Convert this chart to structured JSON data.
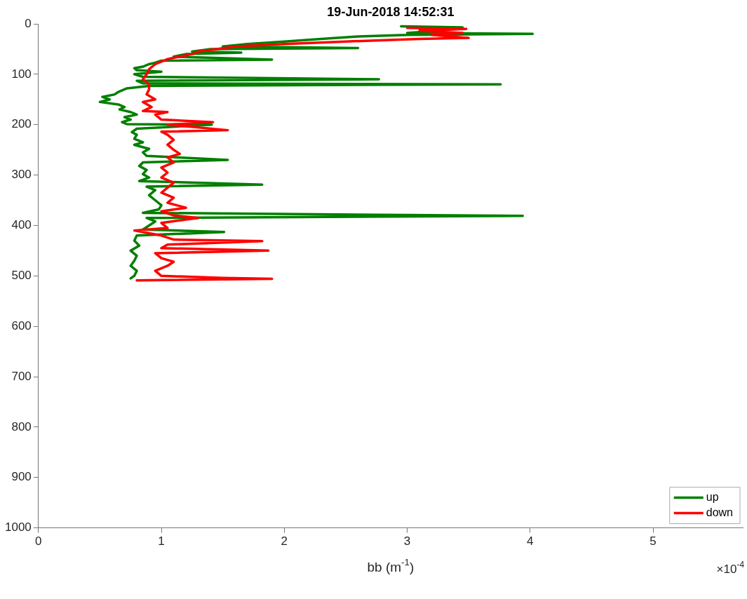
{
  "chart_data": {
    "type": "line",
    "title": "19-Jun-2018 14:52:31",
    "xlabel": "bb (m$^{-1}$)",
    "annotations": [
      "×10$^{-4}$"
    ],
    "xlim": [
      0,
      5.73
    ],
    "xticks": [
      0,
      1,
      2,
      3,
      4,
      5
    ],
    "ylim": [
      1000,
      0
    ],
    "yticks": [
      0,
      100,
      200,
      300,
      400,
      500,
      600,
      700,
      800,
      900,
      1000
    ],
    "grid": false,
    "legend": "bottom right",
    "marker": "none",
    "line_style": "solid",
    "series": [
      {
        "name": "up",
        "color": "#007f00",
        "x": [
          2.95,
          3.45,
          3.1,
          3.3,
          3.0,
          4.02,
          3.0,
          2.6,
          2.3,
          2.0,
          1.7,
          1.5,
          2.6,
          1.4,
          1.25,
          1.65,
          1.2,
          1.1,
          1.9,
          1.0,
          0.95,
          0.9,
          0.85,
          0.78,
          0.8,
          1.0,
          0.78,
          0.85,
          2.77,
          0.8,
          0.85,
          3.76,
          0.9,
          0.72,
          0.65,
          0.62,
          0.52,
          0.58,
          0.5,
          0.65,
          0.7,
          0.66,
          0.75,
          0.8,
          0.7,
          0.75,
          0.68,
          0.72,
          1.41,
          0.8,
          0.76,
          0.8,
          0.78,
          0.85,
          0.78,
          0.9,
          0.85,
          0.88,
          1.54,
          0.85,
          0.82,
          0.88,
          0.85,
          0.9,
          0.82,
          1.82,
          0.88,
          0.95,
          0.9,
          0.95,
          1.0,
          0.98,
          0.85,
          3.94,
          0.88,
          0.95,
          0.9,
          0.85,
          1.51,
          0.8,
          0.78,
          0.82,
          0.75,
          0.8,
          0.78,
          0.75,
          0.8,
          0.78,
          0.75
        ],
        "values": [
          5,
          7,
          10,
          13,
          18,
          20,
          22,
          25,
          30,
          35,
          40,
          45,
          48,
          50,
          55,
          57,
          60,
          65,
          71,
          73,
          77,
          80,
          85,
          88,
          92,
          95,
          100,
          105,
          110,
          113,
          118,
          120,
          123,
          128,
          135,
          140,
          145,
          150,
          155,
          160,
          165,
          170,
          175,
          180,
          185,
          190,
          195,
          199,
          200,
          208,
          215,
          220,
          228,
          235,
          240,
          248,
          255,
          262,
          270,
          275,
          282,
          290,
          298,
          305,
          312,
          319,
          323,
          330,
          340,
          350,
          360,
          368,
          375,
          381,
          385,
          392,
          400,
          408,
          413,
          420,
          430,
          440,
          450,
          460,
          470,
          480,
          490,
          500,
          505
        ]
      },
      {
        "name": "down",
        "color": "#ff0000",
        "x": [
          3.0,
          3.48,
          3.1,
          3.45,
          3.2,
          3.5,
          3.1,
          2.5,
          2.0,
          1.6,
          1.45,
          1.3,
          1.25,
          1.15,
          1.05,
          1.0,
          0.95,
          0.9,
          0.88,
          0.85,
          0.9,
          0.9,
          0.88,
          0.95,
          0.85,
          0.92,
          0.85,
          1.05,
          0.95,
          1.0,
          1.42,
          1.05,
          1.54,
          1.0,
          1.05,
          1.1,
          1.05,
          1.1,
          1.15,
          1.05,
          1.1,
          1.0,
          1.05,
          1.0,
          1.1,
          1.05,
          1.0,
          1.1,
          1.05,
          1.2,
          1.0,
          1.1,
          1.3,
          1.0,
          1.05,
          0.78,
          1.0,
          1.1,
          1.82,
          1.05,
          1.0,
          1.87,
          0.95,
          1.0,
          1.1,
          1.05,
          0.95,
          1.0,
          1.5,
          1.9,
          0.8
        ],
        "values": [
          8,
          10,
          14,
          18,
          22,
          28,
          30,
          35,
          40,
          45,
          50,
          55,
          60,
          65,
          70,
          75,
          80,
          90,
          100,
          110,
          120,
          130,
          140,
          150,
          155,
          165,
          173,
          175,
          180,
          190,
          195,
          200,
          211,
          214,
          220,
          230,
          240,
          250,
          258,
          265,
          275,
          285,
          295,
          305,
          315,
          325,
          335,
          345,
          355,
          365,
          372,
          380,
          385,
          395,
          405,
          410,
          420,
          428,
          431,
          438,
          445,
          450,
          455,
          465,
          472,
          480,
          490,
          500,
          504,
          506,
          509
        ]
      }
    ]
  }
}
